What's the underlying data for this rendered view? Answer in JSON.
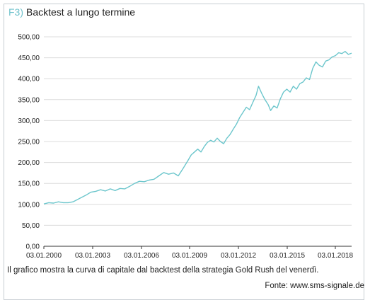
{
  "figure": {
    "number": "F3)",
    "title": "Backtest a lungo termine",
    "caption": "Il grafico mostra la curva di capitale dal backtest della strategia Gold Rush del venerdì.",
    "source": "Fonte: www.sms-signale.de"
  },
  "colors": {
    "line": "#6cc6cc",
    "grid": "#dcdcdc",
    "axis": "#333333",
    "figure_number": "#6fc2cc"
  },
  "chart_data": {
    "type": "line",
    "title": "Backtest a lungo termine",
    "xlabel": "",
    "ylabel": "",
    "x_ticks": [
      "03.01.2000",
      "03.01.2003",
      "03.01.2006",
      "03.01.2009",
      "03.01.2012",
      "03.01.2015",
      "03.01.2018"
    ],
    "y_ticks": [
      "0,00",
      "50,00",
      "100,00",
      "150,00",
      "200,00",
      "250,00",
      "300,00",
      "350,00",
      "400,00",
      "450,00",
      "500,00"
    ],
    "xlim": [
      2000.0,
      2019.0
    ],
    "ylim": [
      0,
      500
    ],
    "grid": true,
    "legend": "none",
    "series": [
      {
        "values": [
          [
            2000.0,
            101
          ],
          [
            2000.3,
            104
          ],
          [
            2000.6,
            103
          ],
          [
            2000.9,
            106
          ],
          [
            2001.2,
            104
          ],
          [
            2001.5,
            104
          ],
          [
            2001.8,
            106
          ],
          [
            2002.0,
            110
          ],
          [
            2002.3,
            116
          ],
          [
            2002.6,
            122
          ],
          [
            2002.9,
            129
          ],
          [
            2003.2,
            131
          ],
          [
            2003.5,
            135
          ],
          [
            2003.8,
            132
          ],
          [
            2004.1,
            137
          ],
          [
            2004.4,
            133
          ],
          [
            2004.7,
            138
          ],
          [
            2005.0,
            137
          ],
          [
            2005.3,
            143
          ],
          [
            2005.6,
            150
          ],
          [
            2005.9,
            155
          ],
          [
            2006.2,
            154
          ],
          [
            2006.5,
            158
          ],
          [
            2006.8,
            160
          ],
          [
            2007.1,
            168
          ],
          [
            2007.4,
            176
          ],
          [
            2007.7,
            172
          ],
          [
            2008.0,
            175
          ],
          [
            2008.3,
            168
          ],
          [
            2008.6,
            186
          ],
          [
            2008.9,
            205
          ],
          [
            2009.1,
            218
          ],
          [
            2009.3,
            225
          ],
          [
            2009.5,
            232
          ],
          [
            2009.7,
            225
          ],
          [
            2009.9,
            238
          ],
          [
            2010.1,
            248
          ],
          [
            2010.3,
            253
          ],
          [
            2010.5,
            249
          ],
          [
            2010.7,
            258
          ],
          [
            2010.9,
            250
          ],
          [
            2011.1,
            245
          ],
          [
            2011.3,
            258
          ],
          [
            2011.5,
            267
          ],
          [
            2011.7,
            280
          ],
          [
            2011.9,
            292
          ],
          [
            2012.1,
            308
          ],
          [
            2012.3,
            320
          ],
          [
            2012.5,
            332
          ],
          [
            2012.7,
            326
          ],
          [
            2012.9,
            343
          ],
          [
            2013.1,
            360
          ],
          [
            2013.25,
            382
          ],
          [
            2013.45,
            365
          ],
          [
            2013.65,
            350
          ],
          [
            2013.85,
            338
          ],
          [
            2014.0,
            324
          ],
          [
            2014.2,
            335
          ],
          [
            2014.4,
            330
          ],
          [
            2014.6,
            352
          ],
          [
            2014.8,
            368
          ],
          [
            2015.0,
            375
          ],
          [
            2015.2,
            368
          ],
          [
            2015.4,
            382
          ],
          [
            2015.6,
            375
          ],
          [
            2015.8,
            388
          ],
          [
            2016.0,
            392
          ],
          [
            2016.2,
            402
          ],
          [
            2016.4,
            398
          ],
          [
            2016.6,
            425
          ],
          [
            2016.8,
            440
          ],
          [
            2017.0,
            432
          ],
          [
            2017.2,
            428
          ],
          [
            2017.4,
            442
          ],
          [
            2017.6,
            445
          ],
          [
            2017.8,
            452
          ],
          [
            2018.0,
            455
          ],
          [
            2018.2,
            462
          ],
          [
            2018.4,
            460
          ],
          [
            2018.6,
            465
          ],
          [
            2018.8,
            458
          ],
          [
            2019.0,
            461
          ]
        ]
      }
    ]
  }
}
